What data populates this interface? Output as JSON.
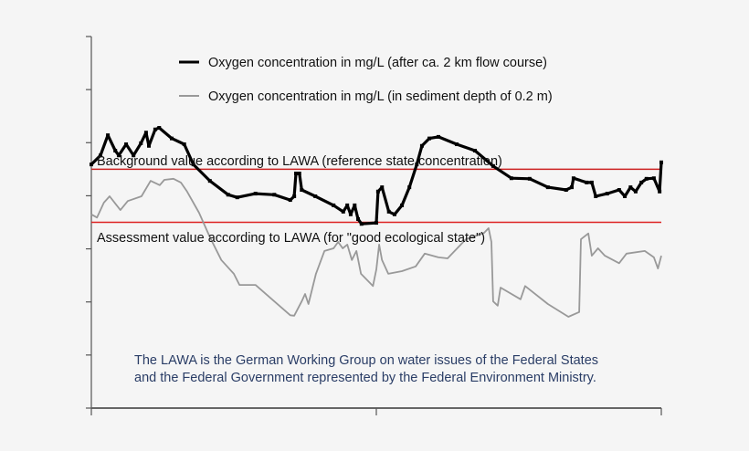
{
  "chart_data": {
    "type": "line",
    "title": "",
    "xlabel": "",
    "ylabel": "",
    "xlim": [
      0,
      100
    ],
    "ylim": [
      0,
      7
    ],
    "x_ticks": 2,
    "y_ticks": 7,
    "tick_labels_shown": false,
    "grid": false,
    "legend_position": "top-center",
    "series": [
      {
        "name": "Oxygen concentration in mg/L (after ca. 2 km flow course)",
        "color": "#000000",
        "style": "thick line with square markers",
        "points": [
          [
            0,
            4.59
          ],
          [
            1.6,
            4.76
          ],
          [
            2.9,
            5.14
          ],
          [
            4.2,
            4.85
          ],
          [
            4.8,
            4.76
          ],
          [
            6.1,
            4.97
          ],
          [
            7.4,
            4.76
          ],
          [
            8.7,
            4.99
          ],
          [
            9.6,
            5.19
          ],
          [
            10.1,
            4.94
          ],
          [
            11.2,
            5.25
          ],
          [
            11.9,
            5.28
          ],
          [
            14.1,
            5.08
          ],
          [
            16.3,
            4.97
          ],
          [
            17.9,
            4.59
          ],
          [
            20.8,
            4.28
          ],
          [
            24.0,
            4.02
          ],
          [
            25.6,
            3.97
          ],
          [
            28.8,
            4.04
          ],
          [
            32.1,
            4.02
          ],
          [
            34.9,
            3.92
          ],
          [
            35.6,
            3.99
          ],
          [
            35.9,
            4.42
          ],
          [
            36.5,
            4.42
          ],
          [
            36.9,
            4.11
          ],
          [
            39.3,
            3.99
          ],
          [
            42.5,
            3.82
          ],
          [
            44.2,
            3.7
          ],
          [
            44.9,
            3.82
          ],
          [
            45.5,
            3.65
          ],
          [
            46.2,
            3.82
          ],
          [
            46.8,
            3.56
          ],
          [
            47.4,
            3.47
          ],
          [
            50.0,
            3.49
          ],
          [
            50.3,
            4.08
          ],
          [
            51.0,
            4.16
          ],
          [
            52.2,
            3.7
          ],
          [
            53.2,
            3.65
          ],
          [
            54.5,
            3.82
          ],
          [
            55.8,
            4.16
          ],
          [
            57.1,
            4.59
          ],
          [
            58.0,
            4.94
          ],
          [
            59.3,
            5.08
          ],
          [
            60.9,
            5.11
          ],
          [
            64.1,
            4.97
          ],
          [
            67.3,
            4.85
          ],
          [
            70.5,
            4.56
          ],
          [
            73.7,
            4.33
          ],
          [
            76.9,
            4.32
          ],
          [
            80.1,
            4.16
          ],
          [
            83.3,
            4.11
          ],
          [
            84.3,
            4.16
          ],
          [
            84.6,
            4.33
          ],
          [
            86.9,
            4.25
          ],
          [
            87.8,
            4.25
          ],
          [
            88.5,
            3.99
          ],
          [
            90.5,
            4.04
          ],
          [
            92.6,
            4.11
          ],
          [
            93.6,
            3.99
          ],
          [
            94.6,
            4.16
          ],
          [
            95.5,
            4.08
          ],
          [
            96.5,
            4.25
          ],
          [
            97.4,
            4.32
          ],
          [
            98.7,
            4.33
          ],
          [
            99.7,
            4.08
          ],
          [
            100,
            4.63
          ]
        ]
      },
      {
        "name": "Oxygen concentration in mg/L (in sediment depth of 0.2 m)",
        "color": "#999999",
        "style": "thin line",
        "points": [
          [
            0,
            3.65
          ],
          [
            1.0,
            3.59
          ],
          [
            2.2,
            3.87
          ],
          [
            3.2,
            3.99
          ],
          [
            5.1,
            3.73
          ],
          [
            6.4,
            3.9
          ],
          [
            8.8,
            3.99
          ],
          [
            10.4,
            4.28
          ],
          [
            12.0,
            4.2
          ],
          [
            12.8,
            4.3
          ],
          [
            14.4,
            4.32
          ],
          [
            15.7,
            4.25
          ],
          [
            16.8,
            4.08
          ],
          [
            18.9,
            3.68
          ],
          [
            20.8,
            3.22
          ],
          [
            22.8,
            2.79
          ],
          [
            25.0,
            2.53
          ],
          [
            26.0,
            2.32
          ],
          [
            28.8,
            2.32
          ],
          [
            32.1,
            2.01
          ],
          [
            34.9,
            1.75
          ],
          [
            35.6,
            1.74
          ],
          [
            36.9,
            2.01
          ],
          [
            37.5,
            2.15
          ],
          [
            38.1,
            1.96
          ],
          [
            39.4,
            2.53
          ],
          [
            40.9,
            2.96
          ],
          [
            42.5,
            3.01
          ],
          [
            43.3,
            3.13
          ],
          [
            44.1,
            3.01
          ],
          [
            44.9,
            3.08
          ],
          [
            45.7,
            2.79
          ],
          [
            46.5,
            2.96
          ],
          [
            47.3,
            2.53
          ],
          [
            49.4,
            2.3
          ],
          [
            50.0,
            2.61
          ],
          [
            50.5,
            3.08
          ],
          [
            51.0,
            2.79
          ],
          [
            52.1,
            2.53
          ],
          [
            54.5,
            2.58
          ],
          [
            56.9,
            2.67
          ],
          [
            58.5,
            2.91
          ],
          [
            60.9,
            2.84
          ],
          [
            62.5,
            2.82
          ],
          [
            65.7,
            3.18
          ],
          [
            68.9,
            3.3
          ],
          [
            69.7,
            3.39
          ],
          [
            70.2,
            3.13
          ],
          [
            70.5,
            2.01
          ],
          [
            71.3,
            1.93
          ],
          [
            71.8,
            2.27
          ],
          [
            75.3,
            2.05
          ],
          [
            76.1,
            2.3
          ],
          [
            80.1,
            1.96
          ],
          [
            83.7,
            1.72
          ],
          [
            85.6,
            1.81
          ],
          [
            85.9,
            3.18
          ],
          [
            87.2,
            3.29
          ],
          [
            87.8,
            2.87
          ],
          [
            88.9,
            3.01
          ],
          [
            90.1,
            2.87
          ],
          [
            92.6,
            2.73
          ],
          [
            93.9,
            2.91
          ],
          [
            97.1,
            2.96
          ],
          [
            98.7,
            2.84
          ],
          [
            99.4,
            2.63
          ],
          [
            100,
            2.87
          ]
        ]
      }
    ],
    "reference_lines": [
      {
        "label": "Background value according to LAWA (reference state concentration)",
        "y": 4.5,
        "color": "#cc2222"
      },
      {
        "label": "Assessment value according to LAWA (for \"good ecological state\")",
        "y": 3.5,
        "color": "#dd2222"
      }
    ],
    "annotation": {
      "line1": "The LAWA is the German Working Group on water issues of the Federal States",
      "line2": "and the Federal Government represented by the Federal Environment Ministry.",
      "color": "#2a3d66"
    }
  }
}
